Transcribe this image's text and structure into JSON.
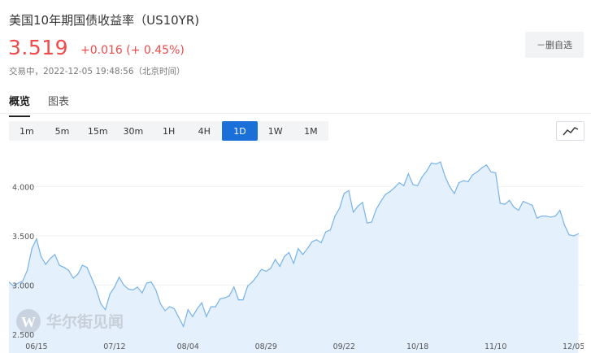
{
  "quote": {
    "title": "美国10年期国债收益率（US10YR)",
    "price": "3.519",
    "change": "+0.016 (+ 0.45%)",
    "status": "交易中，2022-12-05 19:48:56（北京时间）",
    "unwatch_label": "－删自选"
  },
  "tabs": [
    {
      "label": "概览",
      "active": true
    },
    {
      "label": "图表",
      "active": false
    }
  ],
  "periods": [
    {
      "label": "1m",
      "active": false
    },
    {
      "label": "5m",
      "active": false
    },
    {
      "label": "15m",
      "active": false
    },
    {
      "label": "30m",
      "active": false
    },
    {
      "label": "1H",
      "active": false
    },
    {
      "label": "4H",
      "active": false
    },
    {
      "label": "1D",
      "active": true
    },
    {
      "label": "1W",
      "active": false
    },
    {
      "label": "1M",
      "active": false
    }
  ],
  "chart_type_icon": "line-chart-icon",
  "colors": {
    "price_up": "#f04b4b",
    "accent": "#1a6fd8",
    "line": "#78b3e8",
    "fill": "#e4f0fc"
  },
  "watermark": "华尔街见闻",
  "chart_data": {
    "type": "area",
    "ylim": [
      2.45,
      4.4
    ],
    "xlim": [
      0,
      125
    ],
    "grid": true,
    "y_ticks": [
      {
        "value": 4.0,
        "label": "4.000"
      },
      {
        "value": 3.5,
        "label": "3.500"
      },
      {
        "value": 3.0,
        "label": "3.000"
      },
      {
        "value": 2.5,
        "label": "2.500"
      }
    ],
    "x_ticks": [
      {
        "x": 6,
        "label": "06/15"
      },
      {
        "x": 23,
        "label": "07/12"
      },
      {
        "x": 39,
        "label": "08/04"
      },
      {
        "x": 56,
        "label": "08/29"
      },
      {
        "x": 73,
        "label": "09/22"
      },
      {
        "x": 89,
        "label": "10/18"
      },
      {
        "x": 106,
        "label": "11/10"
      },
      {
        "x": 123,
        "label": "12/05"
      }
    ],
    "values": [
      3.03,
      2.99,
      3.02,
      3.04,
      3.15,
      3.37,
      3.47,
      3.29,
      3.21,
      3.27,
      3.31,
      3.2,
      3.18,
      3.15,
      3.07,
      3.11,
      3.2,
      3.18,
      3.07,
      2.96,
      2.81,
      2.75,
      2.91,
      2.98,
      3.08,
      3.0,
      2.96,
      2.95,
      2.98,
      2.92,
      3.02,
      3.03,
      2.95,
      2.81,
      2.74,
      2.78,
      2.76,
      2.67,
      2.58,
      2.75,
      2.68,
      2.76,
      2.82,
      2.68,
      2.78,
      2.78,
      2.86,
      2.87,
      2.89,
      2.98,
      2.85,
      2.85,
      2.99,
      3.03,
      3.09,
      3.16,
      3.14,
      3.17,
      3.26,
      3.19,
      3.29,
      3.33,
      3.22,
      3.37,
      3.31,
      3.37,
      3.44,
      3.46,
      3.43,
      3.54,
      3.56,
      3.7,
      3.78,
      3.93,
      3.96,
      3.74,
      3.8,
      3.84,
      3.63,
      3.64,
      3.77,
      3.85,
      3.92,
      3.95,
      3.99,
      4.04,
      4.01,
      4.13,
      4.02,
      4.01,
      4.1,
      4.16,
      4.24,
      4.23,
      4.25,
      4.1,
      4.0,
      3.93,
      4.04,
      4.06,
      4.05,
      4.12,
      4.15,
      4.19,
      4.22,
      4.15,
      4.14,
      3.83,
      3.82,
      3.86,
      3.79,
      3.76,
      3.85,
      3.83,
      3.81,
      3.68,
      3.7,
      3.7,
      3.69,
      3.7,
      3.76,
      3.61,
      3.51,
      3.5,
      3.52
    ]
  }
}
